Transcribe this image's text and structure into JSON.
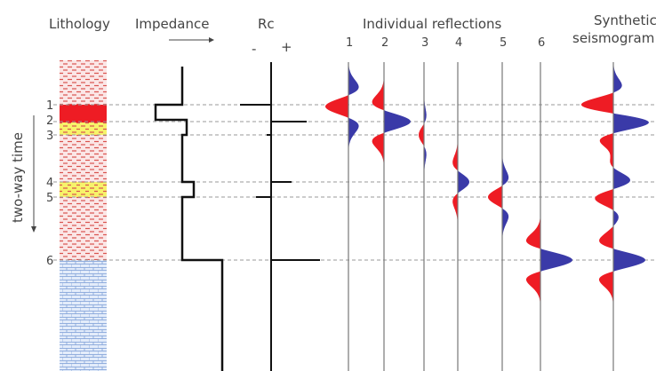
{
  "headers": {
    "lithology": "Lithology",
    "impedance": "Impedance",
    "rc": "Rc",
    "minus": "-",
    "plus": "+",
    "individual_reflections": "Individual reflections",
    "synthetic": [
      "Synthetic",
      "seismogram"
    ]
  },
  "trace_labels": [
    "1",
    "2",
    "3",
    "4",
    "5",
    "6"
  ],
  "layer_labels": [
    "1",
    "2",
    "3",
    "4",
    "5",
    "6"
  ],
  "axis_label": "two-way time"
}
